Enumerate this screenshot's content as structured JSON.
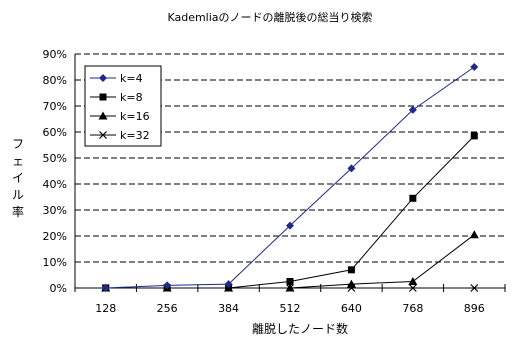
{
  "chart_data": {
    "type": "line",
    "title": "Kademliaのノードの離脱後の総当り検索",
    "xlabel": "離脱したノード数",
    "ylabel": "フェイル率",
    "categories": [
      "128",
      "256",
      "384",
      "512",
      "640",
      "768",
      "896"
    ],
    "ylim": [
      0,
      90
    ],
    "yticks": [
      "0%",
      "10%",
      "20%",
      "30%",
      "40%",
      "50%",
      "60%",
      "70%",
      "80%",
      "90%"
    ],
    "grid": true,
    "legend_position": "top-left",
    "series": [
      {
        "name": "k=4",
        "values": [
          0,
          1,
          1.5,
          24,
          46,
          68.5,
          85
        ],
        "color": "#1f2a8c",
        "marker": "diamond"
      },
      {
        "name": "k=8",
        "values": [
          0,
          0,
          0,
          2.5,
          7,
          34.5,
          58.5
        ],
        "color": "#000000",
        "marker": "square"
      },
      {
        "name": "k=16",
        "values": [
          0,
          0,
          0,
          0,
          1.5,
          2.5,
          20.5
        ],
        "color": "#000000",
        "marker": "triangle"
      },
      {
        "name": "k=32",
        "values": [
          0,
          0,
          0,
          0,
          0,
          0,
          0
        ],
        "color": "#000000",
        "marker": "x"
      }
    ]
  }
}
